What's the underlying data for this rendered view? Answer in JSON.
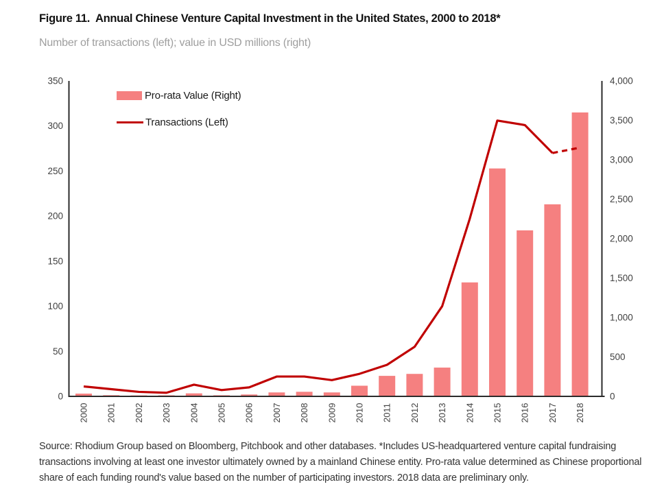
{
  "header": {
    "title": "Figure 11.  Annual Chinese Venture Capital Investment in the United States, 2000 to 2018*",
    "subtitle": "Number of transactions (left); value in USD millions (right)"
  },
  "legend": {
    "bar_label": "Pro-rata Value (Right)",
    "line_label": "Transactions (Left)"
  },
  "footer": {
    "source": "Source: Rhodium Group based on Bloomberg, Pitchbook and other databases. *Includes US-headquartered venture capital fundraising transactions involving at least one investor ultimately owned by a mainland Chinese entity. Pro-rata value determined as Chinese proportional share of each funding round's value based on the number of participating investors. 2018 data are preliminary only."
  },
  "colors": {
    "bar": "#f58080",
    "line": "#c00000",
    "axis": "#2b2b2b",
    "tick_text": "#404040",
    "subtitle": "#9e9e9e"
  },
  "chart_data": {
    "type": "bar",
    "subtype": "combo-bar-line-dual-axis",
    "title": "Figure 11. Annual Chinese Venture Capital Investment in the United States, 2000 to 2018*",
    "xlabel": "",
    "ylabel_left": "Number of transactions",
    "ylabel_right": "Value in USD millions",
    "categories": [
      "2000",
      "2001",
      "2002",
      "2003",
      "2004",
      "2005",
      "2006",
      "2007",
      "2008",
      "2009",
      "2010",
      "2011",
      "2012",
      "2013",
      "2014",
      "2015",
      "2016",
      "2017",
      "2018"
    ],
    "series": [
      {
        "name": "Pro-rata Value (Right)",
        "type": "bar",
        "axis": "right",
        "values": [
          35,
          15,
          12,
          13,
          38,
          14,
          24,
          50,
          58,
          50,
          135,
          260,
          285,
          365,
          1445,
          2890,
          2105,
          2435,
          3600
        ]
      },
      {
        "name": "Transactions (Left)",
        "type": "line",
        "axis": "left",
        "values": [
          11,
          8,
          5,
          4,
          13,
          7,
          10,
          22,
          22,
          18,
          25,
          35,
          55,
          100,
          197,
          306,
          301,
          270,
          276
        ],
        "dashed_segment_from_category": "2017",
        "note": "2018 segment dashed: preliminary data"
      }
    ],
    "left_axis": {
      "range": [
        0,
        350
      ],
      "ticks": [
        0,
        50,
        100,
        150,
        200,
        250,
        300,
        350
      ]
    },
    "right_axis": {
      "range": [
        0,
        4000
      ],
      "ticks": [
        0,
        500,
        1000,
        1500,
        2000,
        2500,
        3000,
        3500,
        4000
      ]
    },
    "grid": false,
    "legend_position": "top-left-inside"
  }
}
